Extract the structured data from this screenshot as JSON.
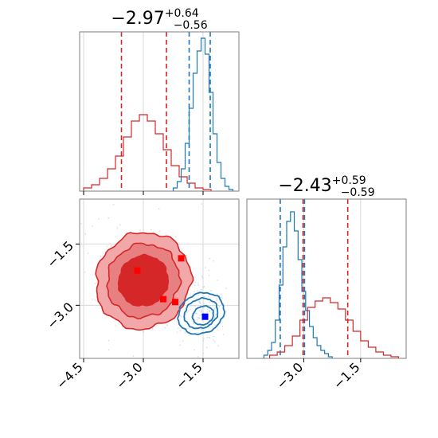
{
  "colors": {
    "red": "#d62728",
    "blue": "#1f77b4",
    "red_fill_light": "#f2a7a9",
    "grid": "#d9d9d9",
    "spine": "#7f7f7f"
  },
  "chart_data": [
    {
      "type": "histogram",
      "panel": "top-left marginal (parameter 1)",
      "title": {
        "median": "−2.97",
        "plus": "+0.64",
        "minus": "−0.56"
      },
      "xlim": [
        -4.6,
        -0.6
      ],
      "grid": true,
      "series": [
        {
          "color": "red",
          "quantiles": [
            -3.55,
            -2.42
          ],
          "x": [
            -4.4,
            -4.2,
            -4.0,
            -3.8,
            -3.6,
            -3.4,
            -3.2,
            -3.0,
            -2.8,
            -2.6,
            -2.4,
            -2.2,
            -2.0,
            -1.8,
            -1.6,
            -1.4
          ],
          "y": [
            0.02,
            0.04,
            0.08,
            0.14,
            0.22,
            0.34,
            0.44,
            0.48,
            0.44,
            0.36,
            0.26,
            0.16,
            0.09,
            0.05,
            0.02,
            0.01
          ]
        },
        {
          "color": "blue",
          "quantiles": [
            -1.85,
            -1.32
          ],
          "x": [
            -2.2,
            -2.1,
            -2.0,
            -1.9,
            -1.8,
            -1.7,
            -1.6,
            -1.5,
            -1.4,
            -1.3,
            -1.2,
            -1.1,
            -1.0,
            -0.9,
            -0.8
          ],
          "y": [
            0.02,
            0.06,
            0.14,
            0.3,
            0.52,
            0.74,
            0.88,
            0.96,
            0.86,
            0.62,
            0.36,
            0.18,
            0.08,
            0.03,
            0.01
          ]
        }
      ]
    },
    {
      "type": "histogram",
      "panel": "bottom-right marginal (parameter 2)",
      "title": {
        "median": "−2.43",
        "plus": "+0.59",
        "minus": "−0.59"
      },
      "xlim": [
        -4.5,
        -0.3
      ],
      "xticks": [
        "−3.0",
        "−1.5"
      ],
      "xtick_values": [
        -3.0,
        -1.5
      ],
      "grid": true,
      "series": [
        {
          "color": "blue",
          "quantiles": [
            -3.62,
            -2.98
          ],
          "x": [
            -4.0,
            -3.9,
            -3.8,
            -3.7,
            -3.6,
            -3.5,
            -3.4,
            -3.3,
            -3.2,
            -3.1,
            -3.0,
            -2.9,
            -2.8,
            -2.7,
            -2.6,
            -2.5,
            -2.4,
            -2.3
          ],
          "y": [
            0.02,
            0.05,
            0.1,
            0.24,
            0.46,
            0.7,
            0.86,
            0.92,
            0.8,
            0.62,
            0.42,
            0.3,
            0.2,
            0.13,
            0.08,
            0.05,
            0.03,
            0.01
          ]
        },
        {
          "color": "red",
          "quantiles": [
            -3.02,
            -1.84
          ],
          "x": [
            -3.8,
            -3.6,
            -3.4,
            -3.2,
            -3.0,
            -2.8,
            -2.6,
            -2.4,
            -2.2,
            -2.0,
            -1.8,
            -1.6,
            -1.4,
            -1.2,
            -1.0,
            -0.8,
            -0.6
          ],
          "y": [
            0.02,
            0.04,
            0.08,
            0.14,
            0.24,
            0.32,
            0.36,
            0.38,
            0.35,
            0.31,
            0.24,
            0.17,
            0.11,
            0.07,
            0.04,
            0.02,
            0.01
          ]
        }
      ]
    },
    {
      "type": "contour",
      "panel": "bottom-left joint (parameter 1 vs parameter 2)",
      "xlim": [
        -4.6,
        -0.6
      ],
      "ylim": [
        -4.3,
        -0.4
      ],
      "xticks": [
        "−4.5",
        "−3.0",
        "−1.5"
      ],
      "xtick_values": [
        -4.5,
        -3.0,
        -1.5
      ],
      "yticks": [
        "−1.5",
        "−3.0"
      ],
      "ytick_values": [
        -1.5,
        -3.0
      ],
      "grid": true,
      "series": [
        {
          "color": "red",
          "center": [
            -3.0,
            -2.4
          ],
          "sigma": [
            0.55,
            0.58
          ],
          "correlation": -0.35,
          "filled": true
        },
        {
          "color": "blue",
          "center": [
            -1.55,
            -3.2
          ],
          "sigma": [
            0.22,
            0.27
          ],
          "correlation": -0.25,
          "filled": false
        }
      ],
      "markers": [
        {
          "color": "red",
          "x": -3.15,
          "y": -2.15
        },
        {
          "color": "red",
          "x": -2.05,
          "y": -1.85
        },
        {
          "color": "red",
          "x": -2.5,
          "y": -2.85
        },
        {
          "color": "red",
          "x": -2.2,
          "y": -2.92
        },
        {
          "color": "blue",
          "x": -1.45,
          "y": -3.28
        }
      ]
    }
  ]
}
